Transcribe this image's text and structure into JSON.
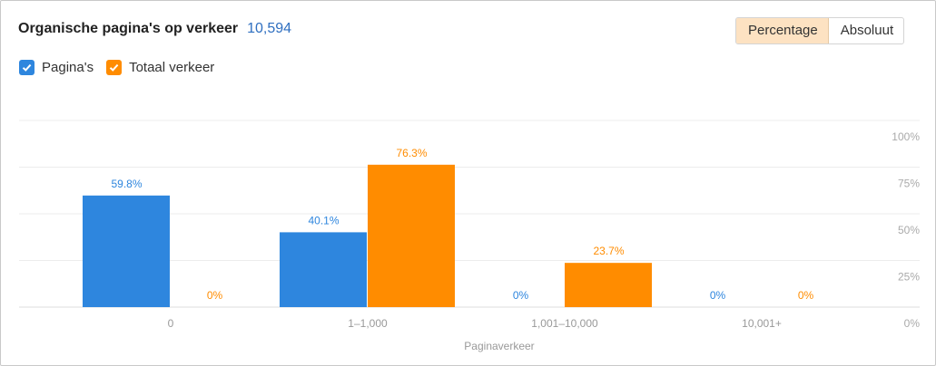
{
  "header": {
    "title": "Organische pagina's op verkeer",
    "count": "10,594"
  },
  "toggle": {
    "percentage_label": "Percentage",
    "absolute_label": "Absoluut"
  },
  "legend": [
    {
      "label": "Pagina's",
      "color": "#2e86de"
    },
    {
      "label": "Totaal verkeer",
      "color": "#ff8c00"
    }
  ],
  "chart_data": {
    "type": "bar",
    "xlabel": "Paginaverkeer",
    "ylabel": "",
    "categories": [
      "0",
      "1–1,000",
      "1,001–10,000",
      "10,001+"
    ],
    "series": [
      {
        "name": "Pagina's",
        "values": [
          59.8,
          40.1,
          0,
          0
        ],
        "labels": [
          "59.8%",
          "40.1%",
          "0%",
          "0%"
        ],
        "color": "#2e86de"
      },
      {
        "name": "Totaal verkeer",
        "values": [
          0,
          76.3,
          23.7,
          0
        ],
        "labels": [
          "0%",
          "76.3%",
          "23.7%",
          "0%"
        ],
        "color": "#ff8c00"
      }
    ],
    "yticks": [
      "0%",
      "25%",
      "50%",
      "75%",
      "100%"
    ],
    "ylim": [
      0,
      100
    ],
    "grid": true,
    "legend": "top-left"
  }
}
